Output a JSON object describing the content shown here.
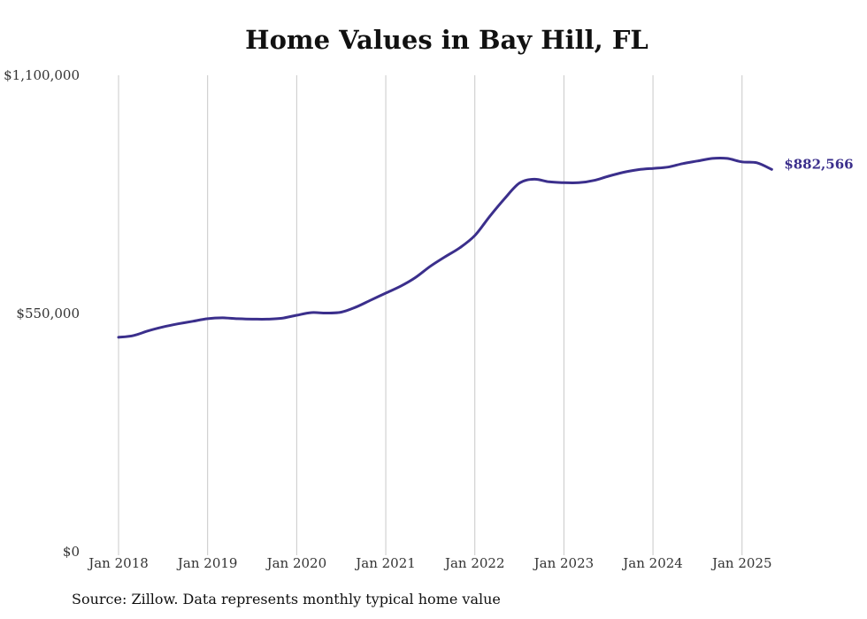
{
  "chart_data": {
    "type": "line",
    "title": "Home Values in Bay Hill, FL",
    "xlabel": "",
    "ylabel": "",
    "x_ticks": [
      "Jan 2018",
      "Jan 2019",
      "Jan 2020",
      "Jan 2021",
      "Jan 2022",
      "Jan 2023",
      "Jan 2024",
      "Jan 2025"
    ],
    "y_ticks": [
      "$0",
      "$550,000",
      "$1,100,000"
    ],
    "ylim": [
      0,
      1100000
    ],
    "xlim": [
      "2018-01",
      "2025-05"
    ],
    "grid": "vertical",
    "legend": "none",
    "line_color": "#3b2f8c",
    "grid_color": "#c8c8c8",
    "end_label": "$882,566",
    "series": [
      {
        "x": [
          "2018-01",
          "2018-03",
          "2018-05",
          "2018-07",
          "2018-09",
          "2018-11",
          "2019-01",
          "2019-03",
          "2019-05",
          "2019-07",
          "2019-09",
          "2019-11",
          "2020-01",
          "2020-03",
          "2020-05",
          "2020-07",
          "2020-09",
          "2020-11",
          "2021-01",
          "2021-03",
          "2021-05",
          "2021-07",
          "2021-09",
          "2021-11",
          "2022-01",
          "2022-03",
          "2022-05",
          "2022-07",
          "2022-09",
          "2022-11",
          "2023-01",
          "2023-03",
          "2023-05",
          "2023-07",
          "2023-09",
          "2023-11",
          "2024-01",
          "2024-03",
          "2024-05",
          "2024-07",
          "2024-09",
          "2024-11",
          "2025-01",
          "2025-03",
          "2025-05"
        ],
        "values": [
          495000,
          499000,
          510000,
          519000,
          526000,
          532000,
          538000,
          540000,
          538000,
          537000,
          537000,
          539000,
          546000,
          552000,
          551000,
          553000,
          565000,
          581000,
          597000,
          613000,
          633000,
          659000,
          681000,
          702000,
          730000,
          774000,
          815000,
          851000,
          860000,
          854000,
          852000,
          852000,
          857000,
          867000,
          876000,
          882000,
          885000,
          888000,
          896000,
          902000,
          908000,
          908000,
          900000,
          898000,
          882566
        ]
      }
    ]
  },
  "title": "Home Values in Bay Hill, FL",
  "source": "Source: Zillow. Data represents monthly typical home value"
}
